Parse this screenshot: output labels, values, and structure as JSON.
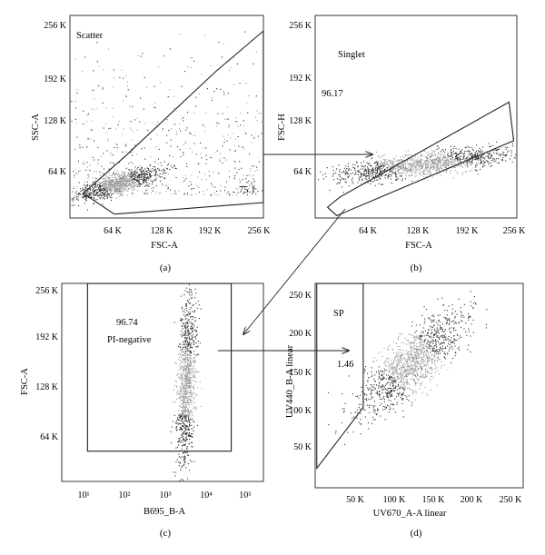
{
  "chart_data": [
    {
      "type": "scatter",
      "panel_label": "(a)",
      "xlabel": "FSC-A",
      "ylabel": "SSC-A",
      "xlim": [
        0,
        262144
      ],
      "ylim": [
        0,
        262144
      ],
      "x_ticks": [
        "64 K",
        "128 K",
        "192 K",
        "256 K"
      ],
      "y_ticks": [
        "64 K",
        "128 K",
        "192 K",
        "256 K"
      ],
      "gate_name": "Scatter",
      "gate_percent": "75.1",
      "gate_polygon": [
        [
          18000,
          32000
        ],
        [
          60000,
          5000
        ],
        [
          262000,
          20000
        ],
        [
          262000,
          242000
        ],
        [
          198000,
          190000
        ],
        [
          75000,
          80000
        ]
      ],
      "population": {
        "center": [
          65000,
          45000
        ],
        "spread": [
          45000,
          25000
        ]
      }
    },
    {
      "type": "scatter",
      "panel_label": "(b)",
      "xlabel": "FSC-A",
      "ylabel": "FSC-H",
      "xlim": [
        0,
        262144
      ],
      "ylim": [
        0,
        262144
      ],
      "x_ticks": [
        "64 K",
        "128 K",
        "192 K",
        "256 K"
      ],
      "y_ticks": [
        "64 K",
        "128 K",
        "192 K",
        "256 K"
      ],
      "gate_name": "Singlet",
      "gate_percent": "96.17",
      "gate_polygon": [
        [
          16000,
          14000
        ],
        [
          28000,
          3000
        ],
        [
          258000,
          100000
        ],
        [
          252000,
          150000
        ],
        [
          32000,
          27000
        ]
      ],
      "population": {
        "center": [
          140000,
          70000
        ],
        "spread": [
          70000,
          20000
        ]
      }
    },
    {
      "type": "scatter",
      "panel_label": "(c)",
      "xlabel": "B695_B-A",
      "ylabel": "FSC-A",
      "x_scale": "log",
      "xlim_log10": [
        0.7,
        5.4
      ],
      "ylim": [
        0,
        262144
      ],
      "x_ticks": [
        "10¹",
        "10²",
        "10³",
        "10⁴",
        "10⁵"
      ],
      "y_ticks": [
        "64 K",
        "128 K",
        "192 K",
        "256 K"
      ],
      "gate_name": "PI-negative",
      "gate_percent": "96.74",
      "gate_polygon": [
        [
          1.3,
          40000
        ],
        [
          4.65,
          40000
        ],
        [
          4.65,
          262000
        ],
        [
          1.3,
          262000
        ]
      ],
      "population": {
        "center": [
          3.6,
          130000
        ],
        "spread": [
          0.3,
          60000
        ]
      }
    },
    {
      "type": "scatter",
      "panel_label": "(d)",
      "xlabel": "UV670_A-A linear",
      "ylabel": "UV440_B-A linear",
      "xlim": [
        0,
        260000
      ],
      "ylim": [
        0,
        262144
      ],
      "x_ticks": [
        "50 K",
        "100 K",
        "150 K",
        "200 K",
        "250 K"
      ],
      "y_ticks": [
        "50 K",
        "100 K",
        "150 K",
        "200 K",
        "250 K"
      ],
      "gate_name": "SP",
      "gate_percent": "1.46",
      "gate_polygon": [
        [
          2000,
          25000
        ],
        [
          2000,
          262000
        ],
        [
          60000,
          262000
        ],
        [
          60000,
          103000
        ]
      ],
      "population": {
        "center": [
          120000,
          160000
        ],
        "spread": [
          40000,
          40000
        ]
      }
    }
  ]
}
